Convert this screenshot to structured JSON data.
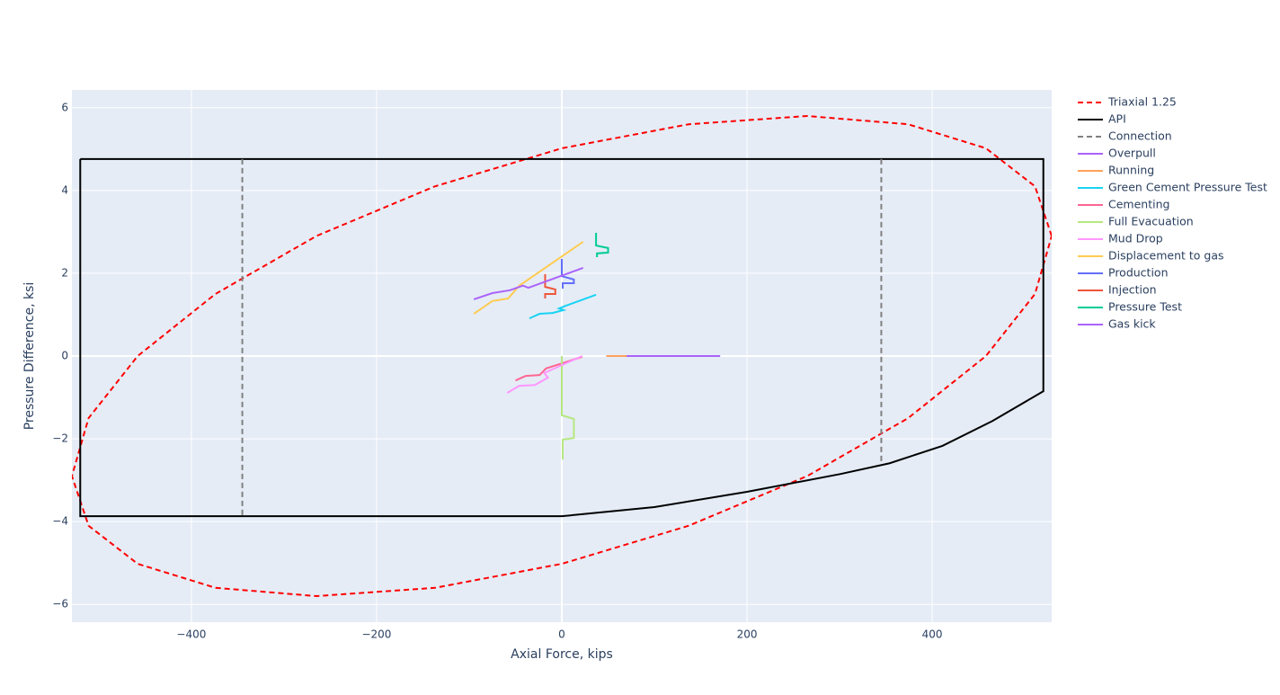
{
  "chart_data": {
    "type": "line",
    "x_label": "Axial Force, kips",
    "y_label": "Pressure Difference, ksi",
    "xlim": [
      -529,
      529
    ],
    "ylim": [
      -6.43,
      6.43
    ],
    "xticks": [
      {
        "value": -400,
        "label": "−400"
      },
      {
        "value": -200,
        "label": "−200"
      },
      0,
      200,
      400
    ],
    "yticks": [
      {
        "value": -6,
        "label": "−6"
      },
      {
        "value": -4,
        "label": "−4"
      },
      {
        "value": -2,
        "label": "−2"
      },
      0,
      2,
      4,
      6
    ],
    "grid": true,
    "legend": "right",
    "background": "#e5ecf6",
    "series": [
      {
        "name": "Triaxial 1.25",
        "color": "#ff0000",
        "dash": "dash",
        "x": [
          529,
          511,
          458,
          374,
          265,
          137,
          0,
          -137,
          -265,
          -374,
          -458,
          -511,
          -529,
          -511,
          -458,
          -374,
          -265,
          -137,
          0,
          137,
          265,
          374,
          458,
          511,
          529
        ],
        "values": [
          2.9,
          4.1,
          5.02,
          5.6,
          5.8,
          5.6,
          5.02,
          4.1,
          2.9,
          1.5,
          0,
          -1.5,
          -2.9,
          -4.1,
          -5.02,
          -5.6,
          -5.8,
          -5.6,
          -5.02,
          -4.1,
          -2.9,
          -1.5,
          0,
          1.5,
          2.9
        ]
      },
      {
        "name": "API",
        "color": "#000000",
        "dash": "solid",
        "x": [
          -520,
          520,
          520,
          465,
          411,
          354,
          301,
          200,
          100,
          0,
          -520,
          -520
        ],
        "values": [
          4.76,
          4.76,
          -0.85,
          -1.57,
          -2.17,
          -2.59,
          -2.85,
          -3.28,
          -3.65,
          -3.87,
          -3.87,
          4.76
        ]
      },
      {
        "name": "Connection",
        "color": "#808080",
        "dash": "dash",
        "x": [
          -345,
          -345,
          null,
          345,
          345
        ],
        "values": [
          4.76,
          -3.87,
          null,
          4.76,
          -2.55
        ]
      },
      {
        "name": "Overpull",
        "color": "#ab63fa",
        "dash": "solid",
        "x": [
          50,
          171
        ],
        "values": [
          0,
          0
        ]
      },
      {
        "name": "Running",
        "color": "#ffa15a",
        "dash": "solid",
        "x": [
          48,
          70
        ],
        "values": [
          0,
          0
        ]
      },
      {
        "name": "Green Cement Pressure Test",
        "color": "#19d3f3",
        "dash": "solid",
        "x": [
          -35,
          -24,
          -10,
          2,
          -3,
          5,
          37
        ],
        "values": [
          0.91,
          1.02,
          1.04,
          1.11,
          1.15,
          1.22,
          1.48
        ]
      },
      {
        "name": "Cementing",
        "color": "#ff6692",
        "dash": "solid",
        "x": [
          -50,
          -39,
          -24,
          -17,
          22
        ],
        "values": [
          -0.59,
          -0.48,
          -0.46,
          -0.3,
          -0.02
        ]
      },
      {
        "name": "Full Evacuation",
        "color": "#b6e880",
        "dash": "solid",
        "x": [
          0,
          0,
          13,
          13,
          1,
          1
        ],
        "values": [
          0,
          -1.43,
          -1.52,
          -1.98,
          -2.02,
          -2.5
        ]
      },
      {
        "name": "Mud Drop",
        "color": "#ff97ff",
        "dash": "solid",
        "x": [
          -59,
          -46,
          -29,
          -15,
          -19,
          22
        ],
        "values": [
          -0.89,
          -0.72,
          -0.7,
          -0.52,
          -0.41,
          0
        ]
      },
      {
        "name": "Displacement to gas",
        "color": "#fecb52",
        "dash": "solid",
        "x": [
          -95,
          -75,
          -58,
          -46,
          23
        ],
        "values": [
          1.02,
          1.33,
          1.39,
          1.7,
          2.76
        ]
      },
      {
        "name": "Production",
        "color": "#636efa",
        "dash": "solid",
        "x": [
          0,
          0,
          13,
          13,
          1,
          1
        ],
        "values": [
          2.35,
          1.93,
          1.85,
          1.76,
          1.76,
          1.63
        ]
      },
      {
        "name": "Injection",
        "color": "#ef553b",
        "dash": "solid",
        "x": [
          -18,
          -18,
          -7,
          -7,
          -18,
          -18
        ],
        "values": [
          1.98,
          1.67,
          1.61,
          1.5,
          1.5,
          1.39
        ]
      },
      {
        "name": "Pressure Test",
        "color": "#00cc96",
        "dash": "solid",
        "x": [
          37,
          37,
          50,
          50,
          38,
          38
        ],
        "values": [
          2.98,
          2.67,
          2.61,
          2.5,
          2.48,
          2.39
        ]
      },
      {
        "name": "Gas kick",
        "color": "#ab63fa",
        "dash": "solid",
        "x": [
          -95,
          -75,
          -56,
          -42,
          -36,
          23
        ],
        "values": [
          1.37,
          1.52,
          1.59,
          1.7,
          1.65,
          2.13
        ]
      }
    ]
  }
}
